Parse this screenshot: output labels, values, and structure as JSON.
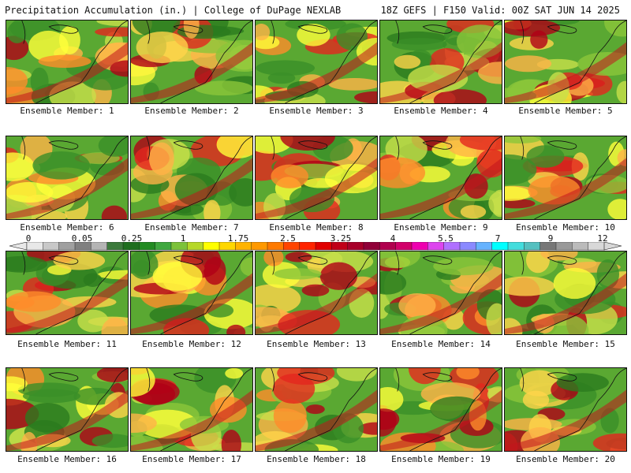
{
  "header": {
    "left": "Precipitation Accumulation (in.) | College of DuPage NEXLAB",
    "right": "18Z GEFS | F150 Valid: 00Z SAT JUN 14 2025"
  },
  "colorbar": {
    "tick_labels": [
      "0",
      "0.05",
      "0.25",
      "1",
      "1.75",
      "2.5",
      "3.25",
      "4",
      "5.5",
      "7",
      "9",
      "12"
    ],
    "colors": [
      "#e8e8e8",
      "#c8c8c8",
      "#a0a0a0",
      "#808080",
      "#b4b4b4",
      "#3c7a3c",
      "#1e6e1e",
      "#228b22",
      "#3fa83f",
      "#7cc23a",
      "#b6d829",
      "#ffff00",
      "#ffd700",
      "#ffb300",
      "#ff9900",
      "#ff7a00",
      "#ff4500",
      "#ff2400",
      "#e00000",
      "#c00018",
      "#a8002a",
      "#900038",
      "#b0004e",
      "#d1006a",
      "#ee00b0",
      "#dd44ee",
      "#b070ff",
      "#8a8aff",
      "#66b3ff",
      "#00ffff",
      "#44dddd",
      "#55c0c0",
      "#777777",
      "#999999",
      "#bbbbbb",
      "#d8d8d8"
    ]
  },
  "members": [
    {
      "label": "Ensemble Member: 1"
    },
    {
      "label": "Ensemble Member: 2"
    },
    {
      "label": "Ensemble Member: 3"
    },
    {
      "label": "Ensemble Member: 4"
    },
    {
      "label": "Ensemble Member: 5"
    },
    {
      "label": "Ensemble Member: 6"
    },
    {
      "label": "Ensemble Member: 7"
    },
    {
      "label": "Ensemble Member: 8"
    },
    {
      "label": "Ensemble Member: 9"
    },
    {
      "label": "Ensemble Member: 10"
    },
    {
      "label": "Ensemble Member: 11"
    },
    {
      "label": "Ensemble Member: 12"
    },
    {
      "label": "Ensemble Member: 13"
    },
    {
      "label": "Ensemble Member: 14"
    },
    {
      "label": "Ensemble Member: 15"
    },
    {
      "label": "Ensemble Member: 16"
    },
    {
      "label": "Ensemble Member: 17"
    },
    {
      "label": "Ensemble Member: 18"
    },
    {
      "label": "Ensemble Member: 19"
    },
    {
      "label": "Ensemble Member: 20"
    }
  ]
}
